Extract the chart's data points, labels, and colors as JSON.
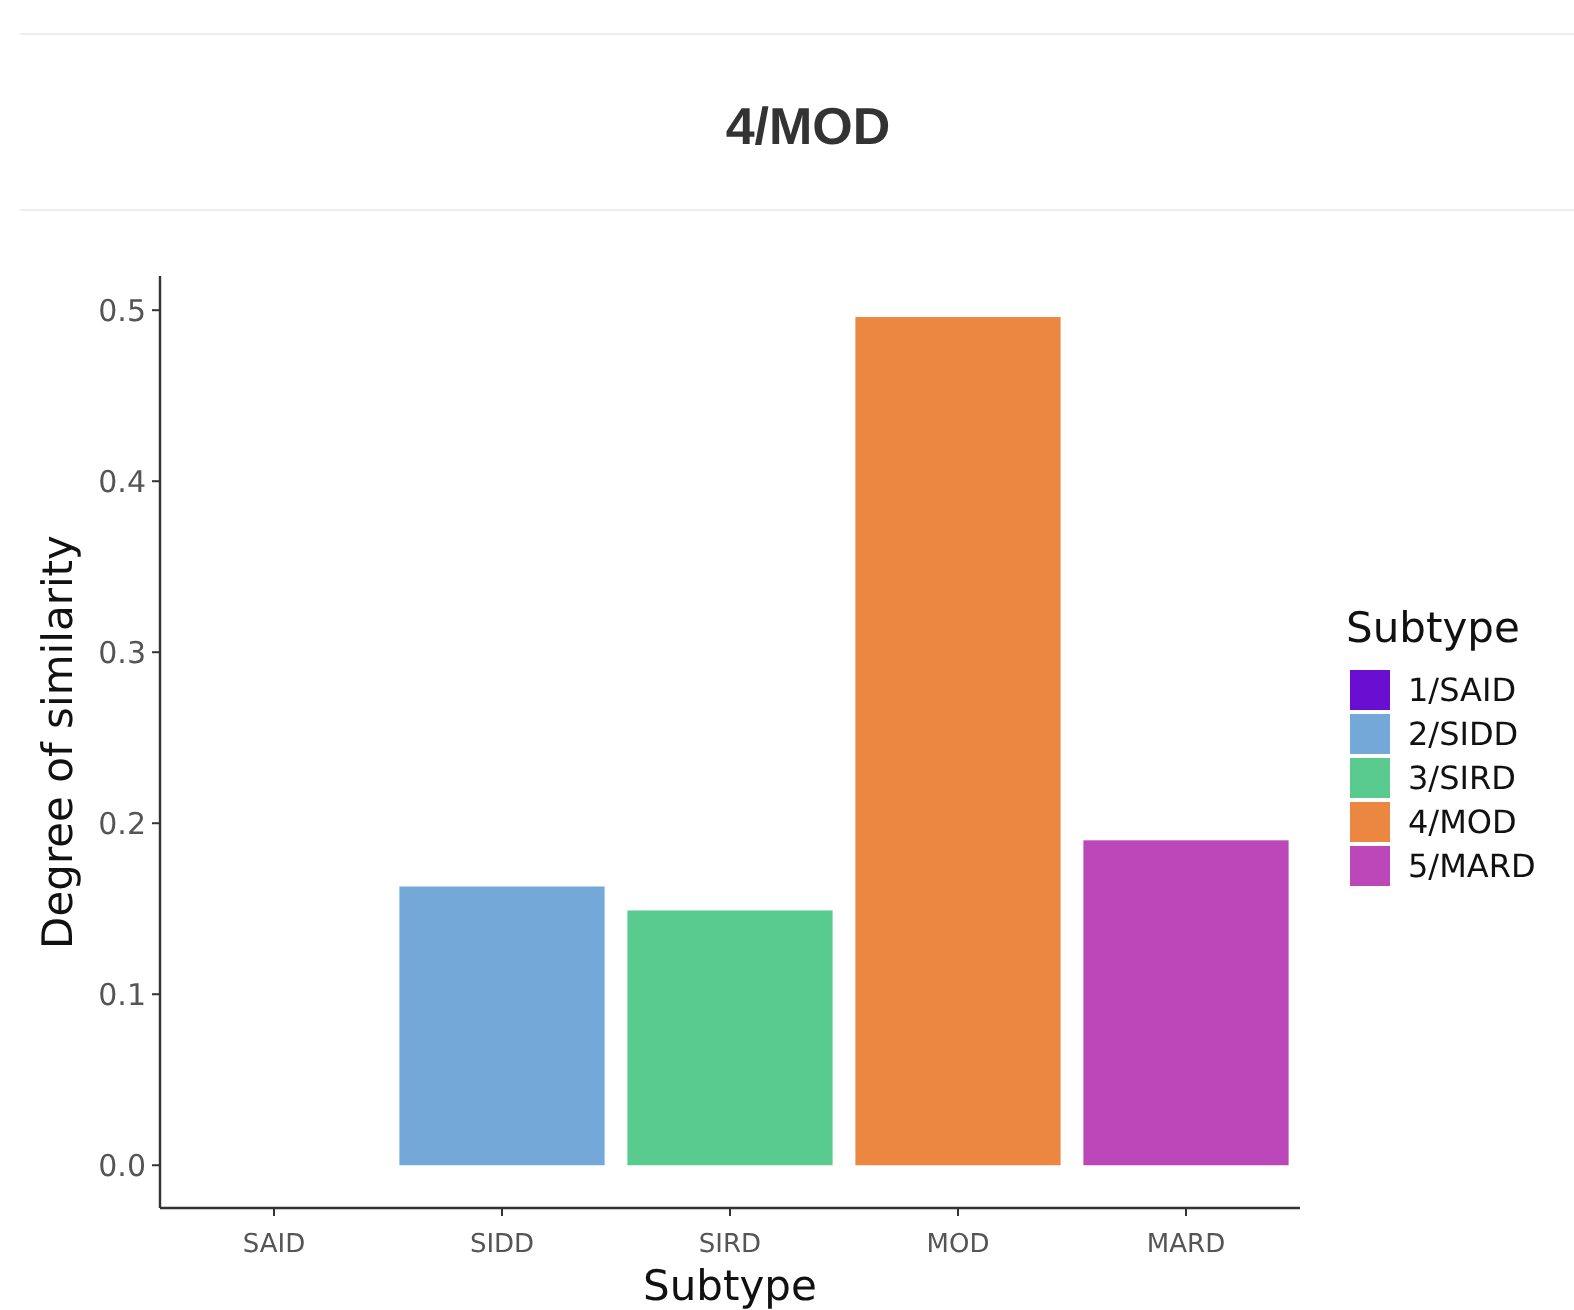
{
  "chart_data": {
    "type": "bar",
    "title": "4/MOD",
    "xlabel": "Subtype",
    "ylabel": "Degree of similarity",
    "legend_title": "Subtype",
    "categories": [
      "SAID",
      "SIDD",
      "SIRD",
      "MOD",
      "MARD"
    ],
    "series": [
      {
        "name": "1/SAID",
        "color": "#6a0fd1",
        "values": [
          0,
          null,
          null,
          null,
          null
        ]
      },
      {
        "name": "2/SIDD",
        "color": "#74a8d9",
        "values": [
          null,
          0.163,
          null,
          null,
          null
        ]
      },
      {
        "name": "3/SIRD",
        "color": "#5acb8f",
        "values": [
          null,
          null,
          0.149,
          null,
          null
        ]
      },
      {
        "name": "4/MOD",
        "color": "#ec8742",
        "values": [
          null,
          null,
          null,
          0.496,
          null
        ]
      },
      {
        "name": "5/MARD",
        "color": "#bb47b9",
        "values": [
          null,
          null,
          null,
          null,
          0.19
        ]
      }
    ],
    "ylim": [
      -0.025,
      0.52
    ],
    "yticks": [
      {
        "value": 0,
        "label": "0.0"
      },
      0.1,
      0.2,
      0.3,
      0.4,
      0.5
    ],
    "grid": false,
    "legend": "right"
  }
}
